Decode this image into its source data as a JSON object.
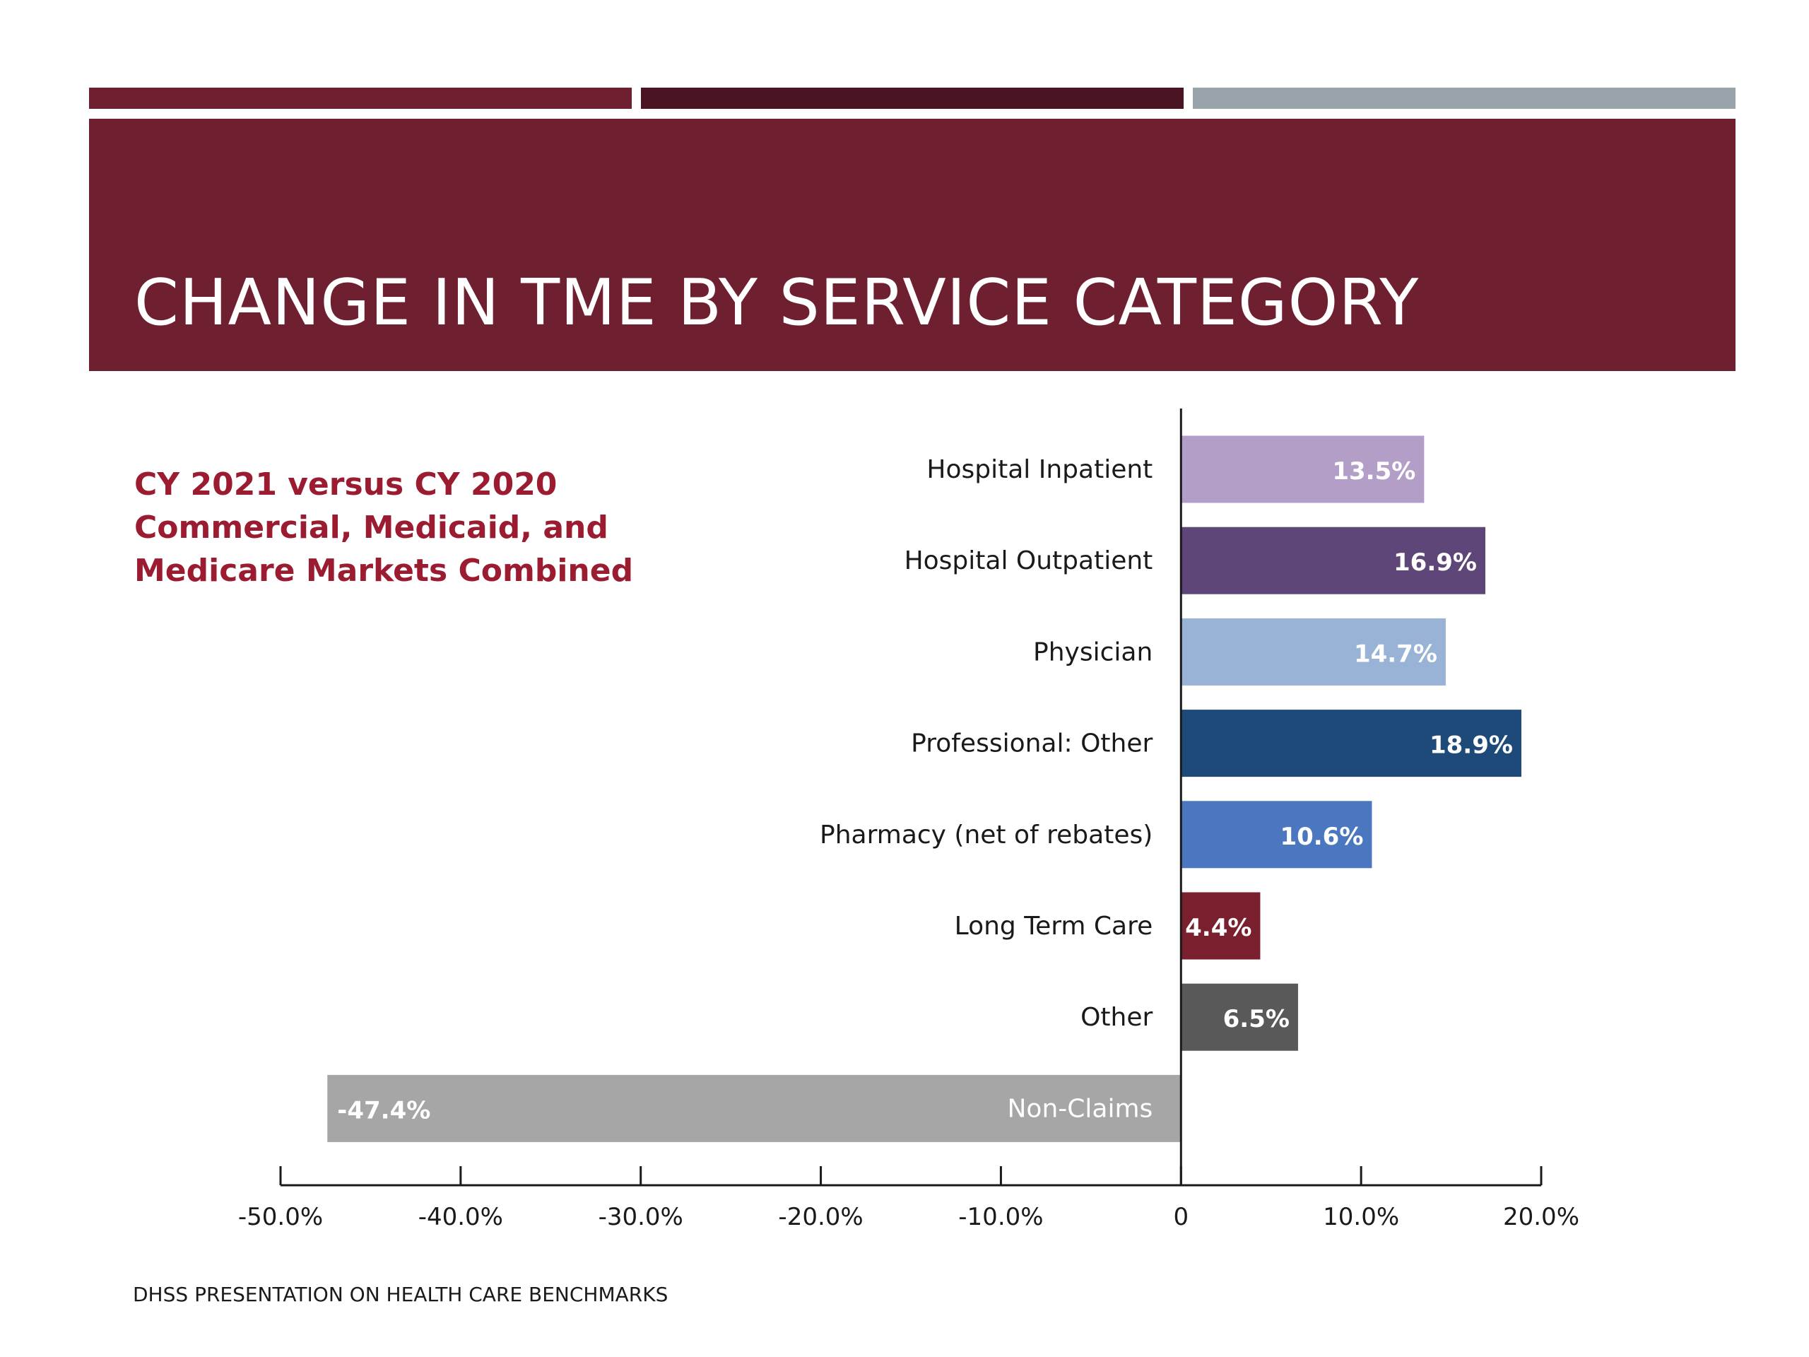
{
  "title": "CHANGE IN TME BY SERVICE CATEGORY",
  "subtitle_lines": [
    "CY 2021 versus CY 2020",
    "Commercial, Medicaid, and",
    "Medicare Markets Combined"
  ],
  "footer": "DHSS PRESENTATION ON HEALTH CARE BENCHMARKS",
  "colors": {
    "banner": "#6e1f30",
    "bar_top_1": "#6e1f30",
    "bar_top_2": "#4a1422",
    "bar_top_3": "#99a3aa",
    "subtitle": "#9b1b30"
  },
  "chart_data": {
    "type": "bar",
    "orientation": "horizontal",
    "categories": [
      "Hospital Inpatient",
      "Hospital Outpatient",
      "Physician",
      "Professional: Other",
      "Pharmacy (net of rebates)",
      "Long Term Care",
      "Other",
      "Non-Claims"
    ],
    "values": [
      13.5,
      16.9,
      14.7,
      18.9,
      10.6,
      4.4,
      6.5,
      -47.4
    ],
    "data_labels": [
      "13.5%",
      "16.9%",
      "14.7%",
      "18.9%",
      "10.6%",
      "4.4%",
      "6.5%",
      "-47.4%"
    ],
    "bar_colors": [
      "#b39ec8",
      "#5f4678",
      "#98b3d6",
      "#1e4a7a",
      "#4a77c0",
      "#7a1f2e",
      "#595959",
      "#a6a6a6"
    ],
    "xlim": [
      -50,
      20
    ],
    "xticks": [
      -50,
      -40,
      -30,
      -20,
      -10,
      0,
      10,
      20
    ],
    "xtick_labels": [
      "-50.0%",
      "-40.0%",
      "-30.0%",
      "-20.0%",
      "-10.0%",
      "0",
      "10.0%",
      "20.0%"
    ],
    "grid": false,
    "legend": "none"
  }
}
